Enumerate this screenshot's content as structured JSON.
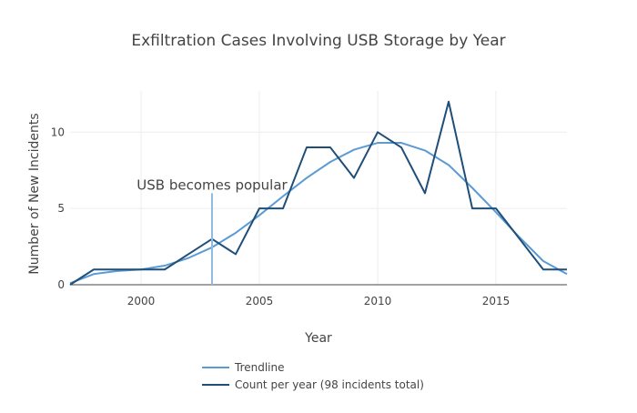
{
  "chart_data": {
    "type": "line",
    "title": "Exfiltration Cases Involving USB Storage by Year",
    "xlabel": "Year",
    "ylabel": "Number of New Incidents",
    "xlim": [
      1997,
      2018
    ],
    "ylim": [
      0,
      12.7
    ],
    "xticks": [
      2000,
      2005,
      2010,
      2015
    ],
    "yticks": [
      0,
      5,
      10
    ],
    "grid": true,
    "legend_position": "bottom",
    "x": [
      1997,
      1998,
      1999,
      2000,
      2001,
      2002,
      2003,
      2004,
      2005,
      2006,
      2007,
      2008,
      2009,
      2010,
      2011,
      2012,
      2013,
      2014,
      2015,
      2016,
      2017,
      2018
    ],
    "series": [
      {
        "name": "Trendline",
        "color": "#5b9bd5",
        "values": [
          0.1,
          0.7,
          0.9,
          1.0,
          1.25,
          1.75,
          2.45,
          3.4,
          4.55,
          5.8,
          7.0,
          8.05,
          8.85,
          9.3,
          9.3,
          8.8,
          7.85,
          6.35,
          4.75,
          3.1,
          1.55,
          0.7
        ]
      },
      {
        "name": "Count per year (98 incidents total)",
        "color": "#1f4e79",
        "values": [
          0,
          1,
          1,
          1,
          1,
          2,
          3,
          2,
          5,
          5,
          9,
          9,
          7,
          10,
          9,
          6,
          12,
          5,
          5,
          3,
          1,
          1
        ]
      }
    ],
    "annotations": [
      {
        "text": "USB becomes popular",
        "x": 2003,
        "y_top": 6
      }
    ]
  }
}
